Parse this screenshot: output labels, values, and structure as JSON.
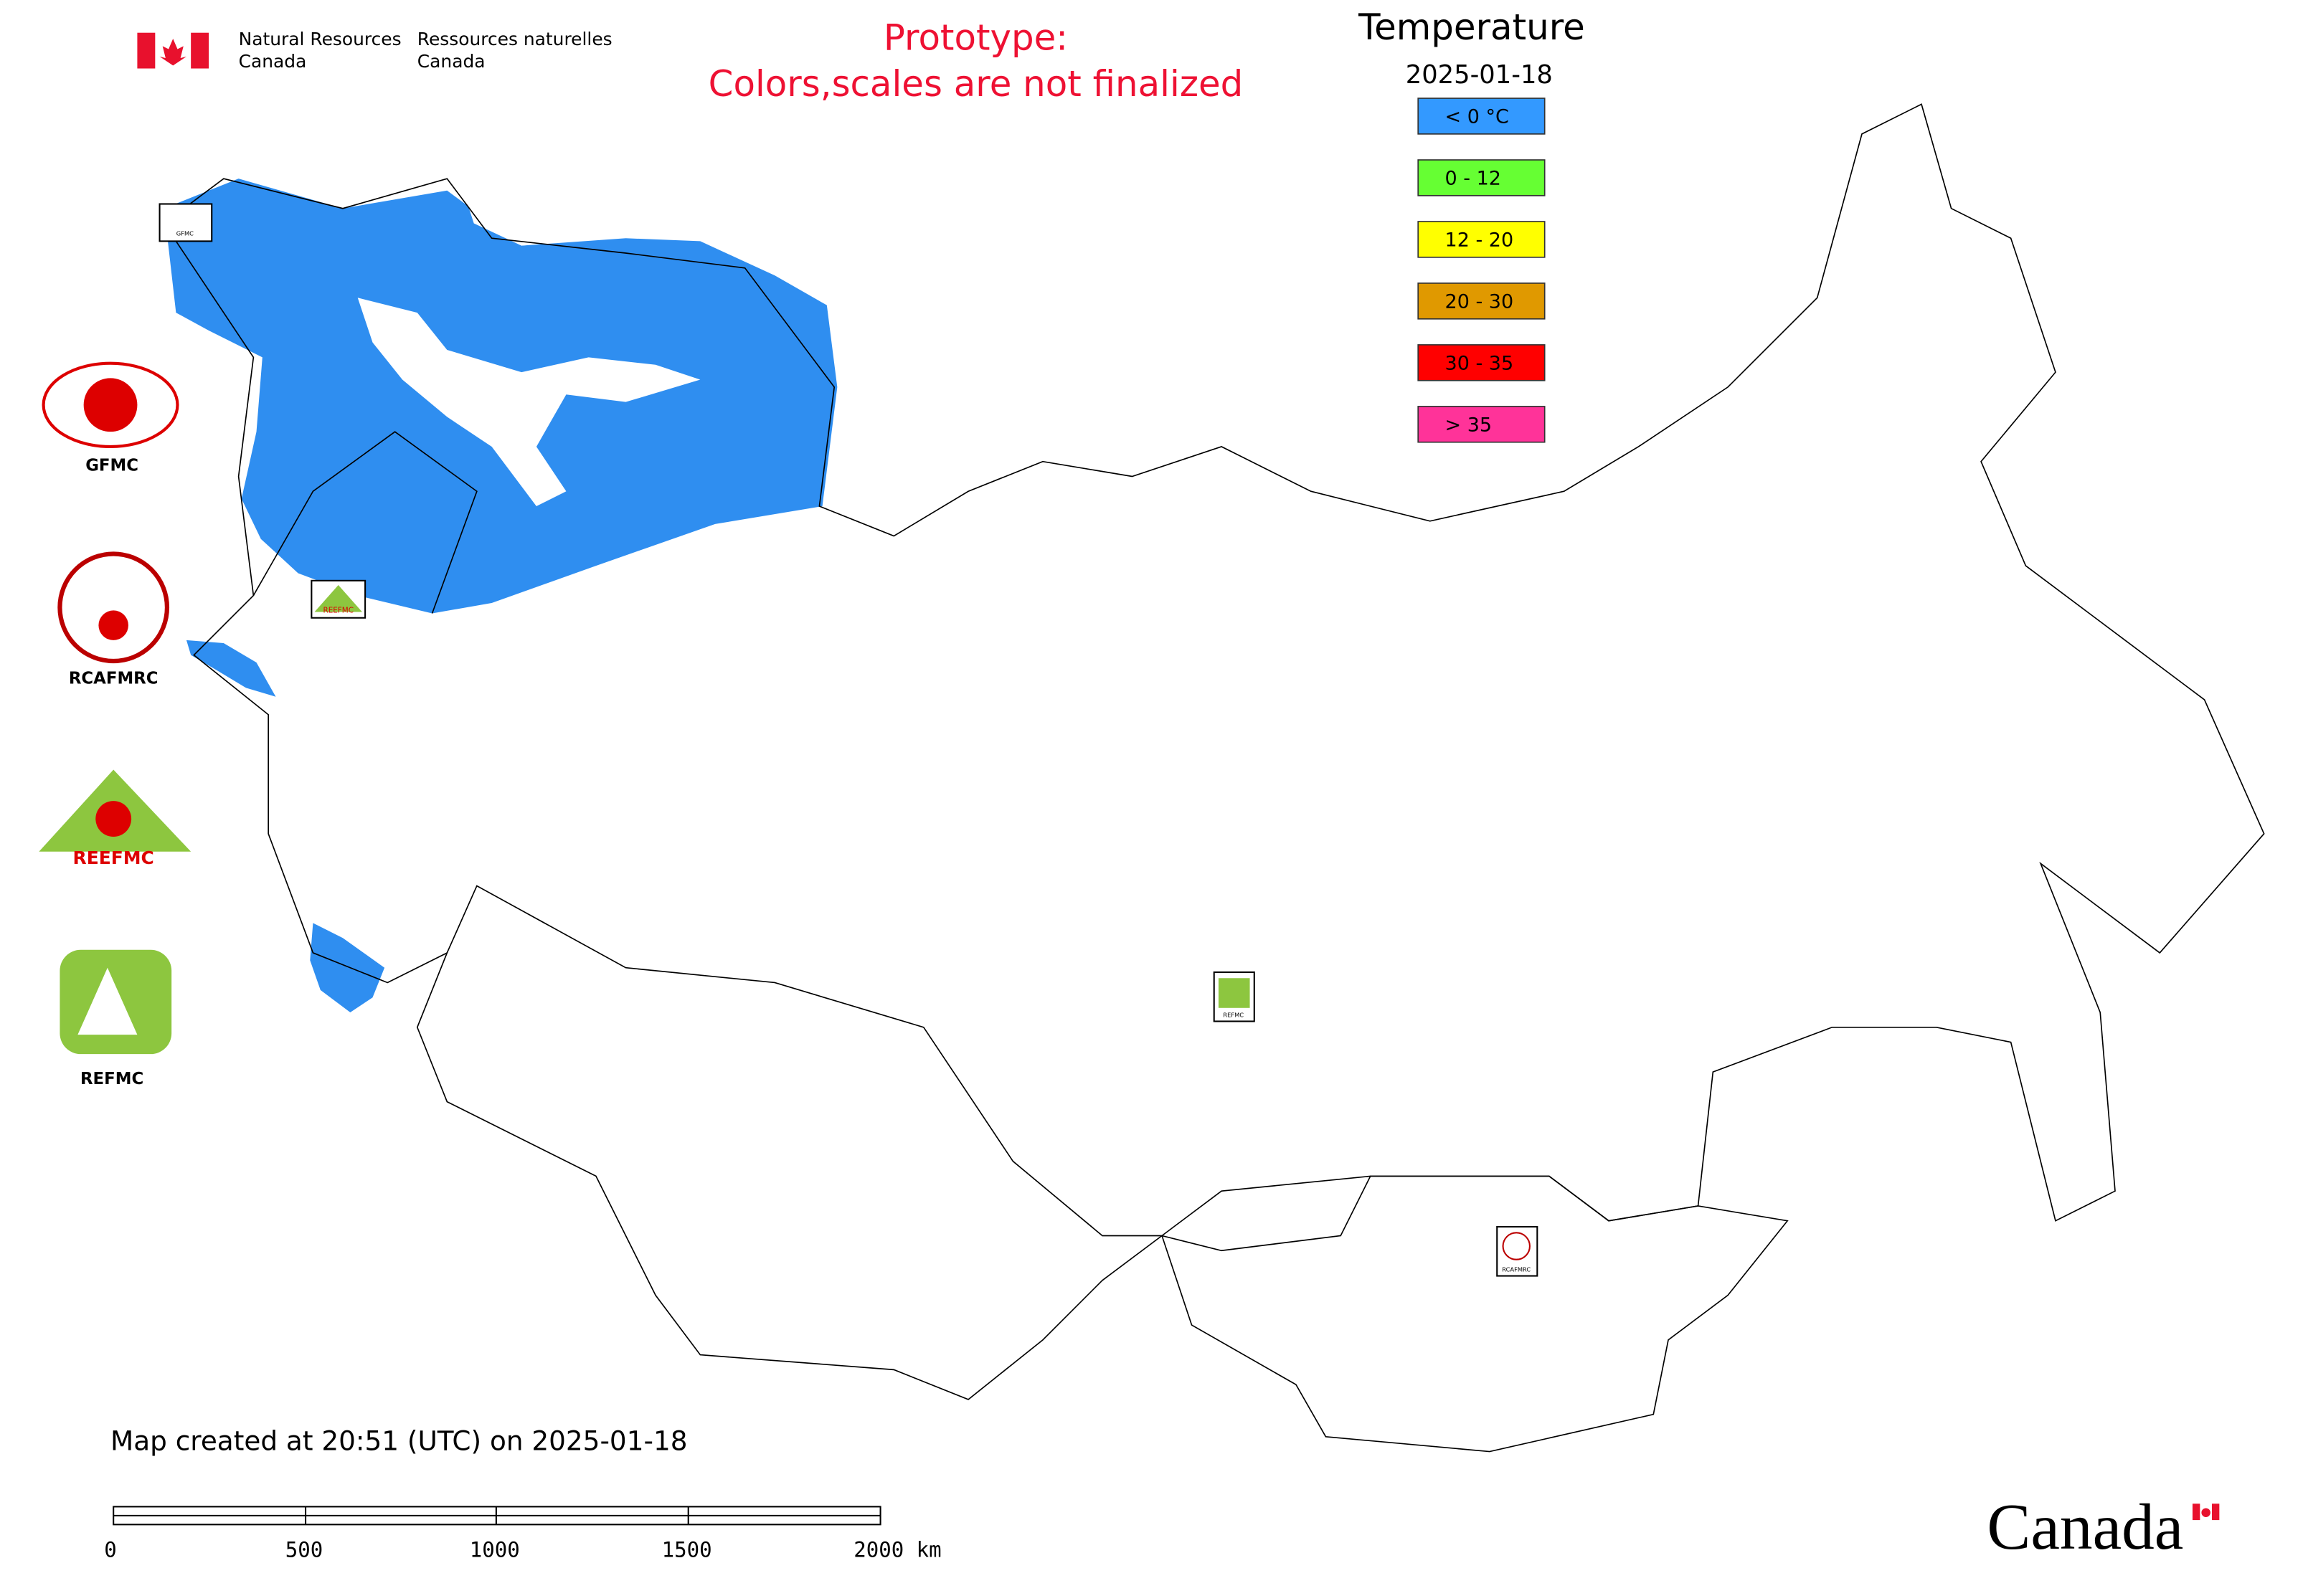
{
  "header": {
    "agency_en": [
      "Natural Resources",
      "Canada"
    ],
    "agency_fr": [
      "Ressources naturelles",
      "Canada"
    ]
  },
  "notice": [
    "Prototype:",
    "Colors,scales are not finalized"
  ],
  "legend": {
    "title": "Temperature",
    "date": "2025-01-18",
    "items": [
      {
        "label": "< 0 °C",
        "color": "#3399ff"
      },
      {
        "label": "0 - 12",
        "color": "#66ff33"
      },
      {
        "label": "12 - 20",
        "color": "#ffff00"
      },
      {
        "label": "20 - 30",
        "color": "#e09900"
      },
      {
        "label": "30 - 35",
        "color": "#ff0000"
      },
      {
        "label": "> 35",
        "color": "#ff3399"
      }
    ]
  },
  "logos": [
    "GFMC",
    "RCAFMRC",
    "REEFMC",
    "REFMC"
  ],
  "map_markers": [
    "GFMC",
    "REEFMC",
    "REFMC",
    "RCAFMRC"
  ],
  "footer": "Map created at 20:51 (UTC) on 2025-01-18",
  "scale_bar": {
    "labels": [
      "0",
      "500",
      "1000",
      "1500",
      "2000 km"
    ]
  },
  "wordmark": "Canada"
}
